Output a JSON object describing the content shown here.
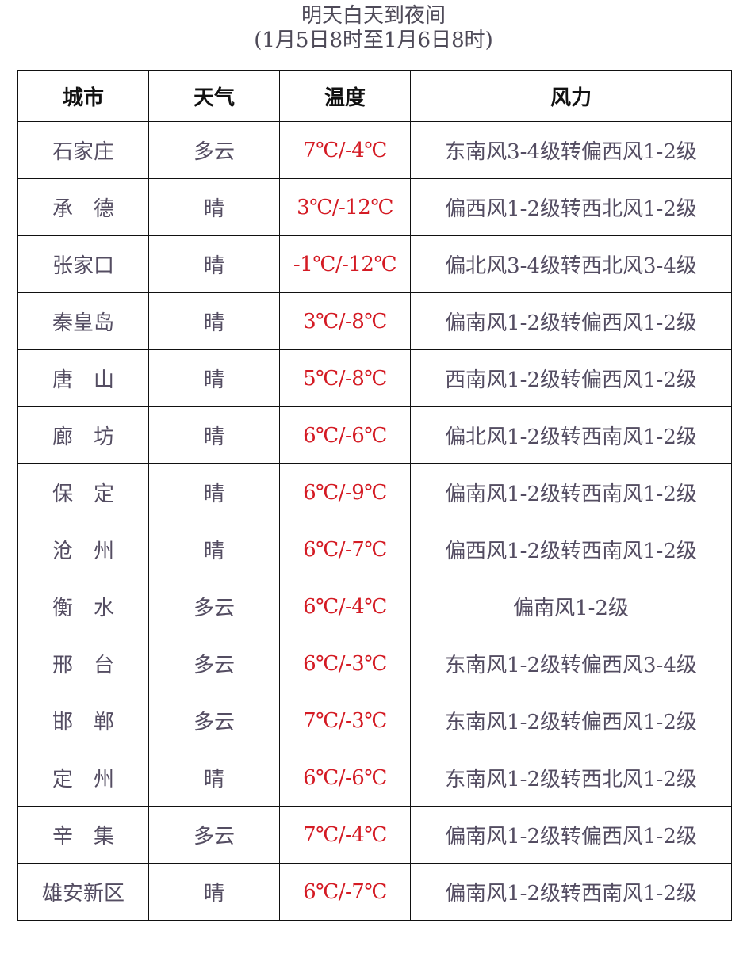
{
  "title": "明天白天到夜间",
  "subtitle": "(1月5日8时至1月6日8时)",
  "colors": {
    "text": "#544d62",
    "temperature": "#d41b24",
    "header": "#111111"
  },
  "headers": [
    "城市",
    "天气",
    "温度",
    "风力"
  ],
  "rows": [
    {
      "city": "石家庄",
      "weather": "多云",
      "temp": "7℃/-4℃",
      "wind": "东南风3-4级转偏西风1-2级"
    },
    {
      "city": "承　德",
      "weather": "晴",
      "temp": "3℃/-12℃",
      "wind": "偏西风1-2级转西北风1-2级"
    },
    {
      "city": "张家口",
      "weather": "晴",
      "temp": "-1℃/-12℃",
      "wind": "偏北风3-4级转西北风3-4级"
    },
    {
      "city": "秦皇岛",
      "weather": "晴",
      "temp": "3℃/-8℃",
      "wind": "偏南风1-2级转偏西风1-2级"
    },
    {
      "city": "唐　山",
      "weather": "晴",
      "temp": "5℃/-8℃",
      "wind": "西南风1-2级转偏西风1-2级"
    },
    {
      "city": "廊　坊",
      "weather": "晴",
      "temp": "6℃/-6℃",
      "wind": "偏北风1-2级转西南风1-2级"
    },
    {
      "city": "保　定",
      "weather": "晴",
      "temp": "6℃/-9℃",
      "wind": "偏南风1-2级转西南风1-2级"
    },
    {
      "city": "沧　州",
      "weather": "晴",
      "temp": "6℃/-7℃",
      "wind": "偏西风1-2级转西南风1-2级"
    },
    {
      "city": "衡　水",
      "weather": "多云",
      "temp": "6℃/-4℃",
      "wind": "偏南风1-2级"
    },
    {
      "city": "邢　台",
      "weather": "多云",
      "temp": "6℃/-3℃",
      "wind": "东南风1-2级转偏西风3-4级"
    },
    {
      "city": "邯　郸",
      "weather": "多云",
      "temp": "7℃/-3℃",
      "wind": "东南风1-2级转偏西风1-2级"
    },
    {
      "city": "定　州",
      "weather": "晴",
      "temp": "6℃/-6℃",
      "wind": "东南风1-2级转西北风1-2级"
    },
    {
      "city": "辛　集",
      "weather": "多云",
      "temp": "7℃/-4℃",
      "wind": "偏南风1-2级转偏西风1-2级"
    },
    {
      "city": "雄安新区",
      "weather": "晴",
      "temp": "6℃/-7℃",
      "wind": "偏南风1-2级转西南风1-2级"
    }
  ]
}
